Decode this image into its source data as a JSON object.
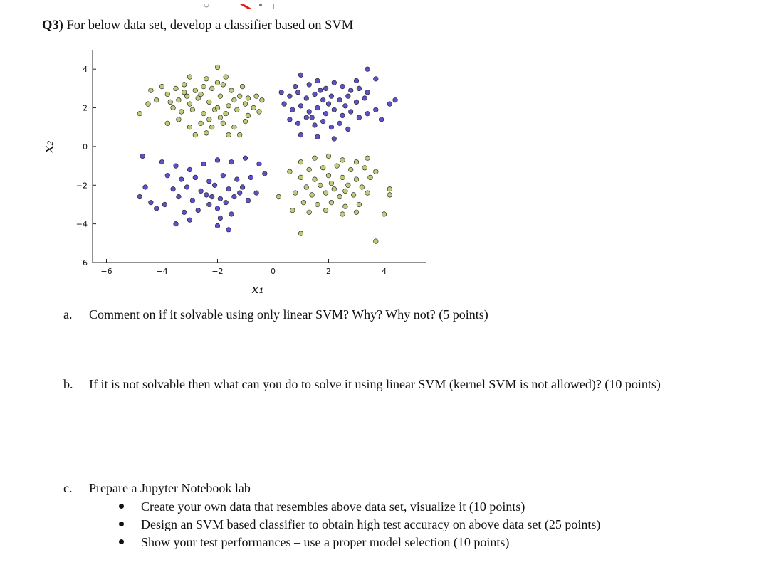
{
  "question": {
    "label": "Q3)",
    "text": "For below data set, develop a classifier based on SVM"
  },
  "chart_data": {
    "type": "scatter",
    "xlabel": "x₁",
    "ylabel": "x₂",
    "xlim": [
      -6.5,
      5.5
    ],
    "ylim": [
      -6,
      5
    ],
    "xticks": [
      -6,
      -4,
      -2,
      0,
      2,
      4
    ],
    "yticks": [
      -6,
      -4,
      -2,
      0,
      2,
      4
    ],
    "grid": false,
    "colors": {
      "olive": "#b9c46a",
      "blue": "#4b3fc0"
    },
    "series": [
      {
        "color": "olive",
        "points": [
          [
            -2.0,
            4.1
          ],
          [
            -3.0,
            3.6
          ],
          [
            -3.2,
            3.2
          ],
          [
            -3.5,
            3.0
          ],
          [
            -3.8,
            2.7
          ],
          [
            -3.2,
            2.8
          ],
          [
            -2.8,
            2.9
          ],
          [
            -2.5,
            3.1
          ],
          [
            -2.2,
            3.0
          ],
          [
            -1.8,
            3.2
          ],
          [
            -1.5,
            2.9
          ],
          [
            -1.2,
            2.6
          ],
          [
            -0.9,
            2.5
          ],
          [
            -0.6,
            2.6
          ],
          [
            -0.4,
            2.4
          ],
          [
            -1.0,
            2.2
          ],
          [
            -1.4,
            2.4
          ],
          [
            -1.9,
            2.6
          ],
          [
            -2.3,
            2.3
          ],
          [
            -2.7,
            2.5
          ],
          [
            -3.0,
            2.2
          ],
          [
            -3.4,
            2.4
          ],
          [
            -3.6,
            2.0
          ],
          [
            -4.2,
            2.4
          ],
          [
            -4.4,
            2.9
          ],
          [
            -4.0,
            3.1
          ],
          [
            -3.3,
            1.8
          ],
          [
            -2.9,
            1.9
          ],
          [
            -2.5,
            1.7
          ],
          [
            -2.1,
            1.9
          ],
          [
            -1.7,
            1.7
          ],
          [
            -1.3,
            1.9
          ],
          [
            -0.9,
            1.6
          ],
          [
            -0.5,
            1.8
          ],
          [
            -1.0,
            1.3
          ],
          [
            -1.4,
            1.0
          ],
          [
            -1.8,
            1.2
          ],
          [
            -2.2,
            1.0
          ],
          [
            -2.6,
            1.2
          ],
          [
            -3.0,
            1.0
          ],
          [
            -3.4,
            1.4
          ],
          [
            -3.8,
            1.2
          ],
          [
            -2.4,
            0.7
          ],
          [
            -1.6,
            0.6
          ],
          [
            -1.2,
            0.6
          ],
          [
            -2.8,
            0.6
          ],
          [
            -4.8,
            1.7
          ],
          [
            -4.5,
            2.2
          ],
          [
            -2.0,
            2.0
          ],
          [
            -1.6,
            2.1
          ],
          [
            -2.6,
            2.7
          ],
          [
            -1.1,
            3.1
          ],
          [
            -2.4,
            3.5
          ],
          [
            -2.0,
            3.3
          ],
          [
            -1.7,
            3.6
          ],
          [
            -3.1,
            2.6
          ],
          [
            -0.7,
            2.0
          ],
          [
            -3.7,
            2.3
          ],
          [
            -2.3,
            1.4
          ],
          [
            -1.9,
            1.5
          ],
          [
            1.0,
            -0.8
          ],
          [
            1.5,
            -0.6
          ],
          [
            2.0,
            -0.5
          ],
          [
            2.5,
            -0.7
          ],
          [
            3.0,
            -0.8
          ],
          [
            3.4,
            -0.6
          ],
          [
            1.3,
            -1.2
          ],
          [
            1.8,
            -1.1
          ],
          [
            2.3,
            -1.0
          ],
          [
            2.8,
            -1.2
          ],
          [
            3.3,
            -1.1
          ],
          [
            3.7,
            -1.3
          ],
          [
            1.0,
            -1.6
          ],
          [
            1.5,
            -1.7
          ],
          [
            2.0,
            -1.5
          ],
          [
            2.5,
            -1.6
          ],
          [
            3.0,
            -1.7
          ],
          [
            3.5,
            -1.6
          ],
          [
            1.2,
            -2.1
          ],
          [
            1.7,
            -2.0
          ],
          [
            2.2,
            -2.2
          ],
          [
            2.7,
            -2.0
          ],
          [
            3.2,
            -2.1
          ],
          [
            0.8,
            -2.4
          ],
          [
            1.4,
            -2.5
          ],
          [
            1.9,
            -2.4
          ],
          [
            2.4,
            -2.6
          ],
          [
            2.9,
            -2.5
          ],
          [
            3.4,
            -2.4
          ],
          [
            1.1,
            -2.9
          ],
          [
            1.6,
            -3.0
          ],
          [
            2.1,
            -2.9
          ],
          [
            2.6,
            -3.1
          ],
          [
            3.1,
            -3.0
          ],
          [
            0.7,
            -3.3
          ],
          [
            1.3,
            -3.4
          ],
          [
            1.9,
            -3.3
          ],
          [
            2.5,
            -3.5
          ],
          [
            3.0,
            -3.4
          ],
          [
            4.2,
            -2.2
          ],
          [
            4.2,
            -2.5
          ],
          [
            4.0,
            -3.5
          ],
          [
            1.0,
            -4.5
          ],
          [
            3.7,
            -4.9
          ],
          [
            0.2,
            -2.6
          ],
          [
            0.6,
            -1.3
          ],
          [
            2.1,
            -1.9
          ],
          [
            2.6,
            -2.3
          ]
        ]
      },
      {
        "color": "blue",
        "points": [
          [
            3.4,
            4.0
          ],
          [
            3.7,
            3.5
          ],
          [
            1.0,
            3.7
          ],
          [
            1.3,
            3.2
          ],
          [
            1.6,
            3.4
          ],
          [
            1.9,
            3.0
          ],
          [
            2.2,
            3.3
          ],
          [
            2.5,
            3.1
          ],
          [
            2.8,
            2.9
          ],
          [
            3.1,
            3.0
          ],
          [
            3.4,
            2.8
          ],
          [
            0.3,
            2.8
          ],
          [
            0.6,
            2.6
          ],
          [
            0.9,
            2.8
          ],
          [
            1.2,
            2.5
          ],
          [
            1.5,
            2.7
          ],
          [
            1.8,
            2.4
          ],
          [
            2.1,
            2.6
          ],
          [
            2.4,
            2.4
          ],
          [
            2.7,
            2.6
          ],
          [
            3.0,
            2.3
          ],
          [
            3.3,
            2.5
          ],
          [
            0.4,
            2.2
          ],
          [
            0.7,
            1.9
          ],
          [
            1.0,
            2.1
          ],
          [
            1.3,
            1.8
          ],
          [
            1.6,
            2.0
          ],
          [
            1.9,
            1.7
          ],
          [
            2.2,
            1.9
          ],
          [
            2.5,
            1.6
          ],
          [
            2.8,
            1.8
          ],
          [
            3.1,
            1.5
          ],
          [
            3.4,
            1.7
          ],
          [
            3.7,
            1.9
          ],
          [
            0.6,
            1.4
          ],
          [
            0.9,
            1.2
          ],
          [
            1.2,
            1.5
          ],
          [
            1.5,
            1.1
          ],
          [
            1.8,
            1.3
          ],
          [
            2.1,
            1.0
          ],
          [
            2.4,
            1.2
          ],
          [
            2.7,
            0.9
          ],
          [
            1.0,
            0.6
          ],
          [
            1.6,
            0.5
          ],
          [
            2.2,
            0.4
          ],
          [
            4.2,
            2.2
          ],
          [
            4.4,
            2.4
          ],
          [
            3.9,
            1.4
          ],
          [
            2.0,
            2.2
          ],
          [
            1.7,
            2.9
          ],
          [
            2.6,
            2.1
          ],
          [
            3.0,
            3.4
          ],
          [
            1.4,
            1.5
          ],
          [
            0.8,
            3.1
          ],
          [
            -4.7,
            -0.5
          ],
          [
            -4.0,
            -0.8
          ],
          [
            -3.5,
            -1.0
          ],
          [
            -3.0,
            -1.2
          ],
          [
            -2.5,
            -0.9
          ],
          [
            -2.0,
            -0.7
          ],
          [
            -1.5,
            -0.8
          ],
          [
            -1.0,
            -0.6
          ],
          [
            -0.5,
            -0.9
          ],
          [
            -3.8,
            -1.5
          ],
          [
            -3.3,
            -1.7
          ],
          [
            -2.8,
            -1.6
          ],
          [
            -2.3,
            -1.8
          ],
          [
            -1.8,
            -1.5
          ],
          [
            -1.3,
            -1.7
          ],
          [
            -0.8,
            -1.6
          ],
          [
            -3.6,
            -2.2
          ],
          [
            -3.1,
            -2.1
          ],
          [
            -2.6,
            -2.3
          ],
          [
            -2.1,
            -2.0
          ],
          [
            -1.6,
            -2.2
          ],
          [
            -1.1,
            -2.1
          ],
          [
            -0.6,
            -2.4
          ],
          [
            -3.4,
            -2.6
          ],
          [
            -2.9,
            -2.8
          ],
          [
            -2.4,
            -2.5
          ],
          [
            -1.9,
            -2.7
          ],
          [
            -1.4,
            -2.6
          ],
          [
            -0.9,
            -2.8
          ],
          [
            -4.6,
            -2.1
          ],
          [
            -4.4,
            -2.9
          ],
          [
            -4.2,
            -3.2
          ],
          [
            -3.2,
            -3.4
          ],
          [
            -2.7,
            -3.3
          ],
          [
            -2.0,
            -3.2
          ],
          [
            -1.5,
            -3.5
          ],
          [
            -3.0,
            -3.8
          ],
          [
            -3.5,
            -4.0
          ],
          [
            -2.0,
            -4.1
          ],
          [
            -1.6,
            -4.3
          ],
          [
            -1.9,
            -3.7
          ],
          [
            -2.3,
            -3.0
          ],
          [
            -1.2,
            -2.4
          ],
          [
            -0.3,
            -1.4
          ],
          [
            -2.2,
            -2.6
          ],
          [
            -1.7,
            -2.9
          ],
          [
            -4.8,
            -2.6
          ],
          [
            -3.9,
            -3.0
          ]
        ]
      }
    ]
  },
  "items": [
    {
      "letter": "a.",
      "text": "Comment on if it solvable using only linear SVM? Why? Why not? (5 points)"
    },
    {
      "letter": "b.",
      "text": "If it is not solvable then what can you do to solve it using linear SVM (kernel SVM is not allowed)? (10 points)"
    },
    {
      "letter": "c.",
      "text": "Prepare a Jupyter Notebook lab"
    }
  ],
  "bullets": [
    "Create your own data that resembles above data set, visualize it (10 points)",
    "Design an SVM based classifier to obtain high test accuracy on above data set (25 points)",
    "Show your test performances – use a proper model selection (10 points)"
  ]
}
